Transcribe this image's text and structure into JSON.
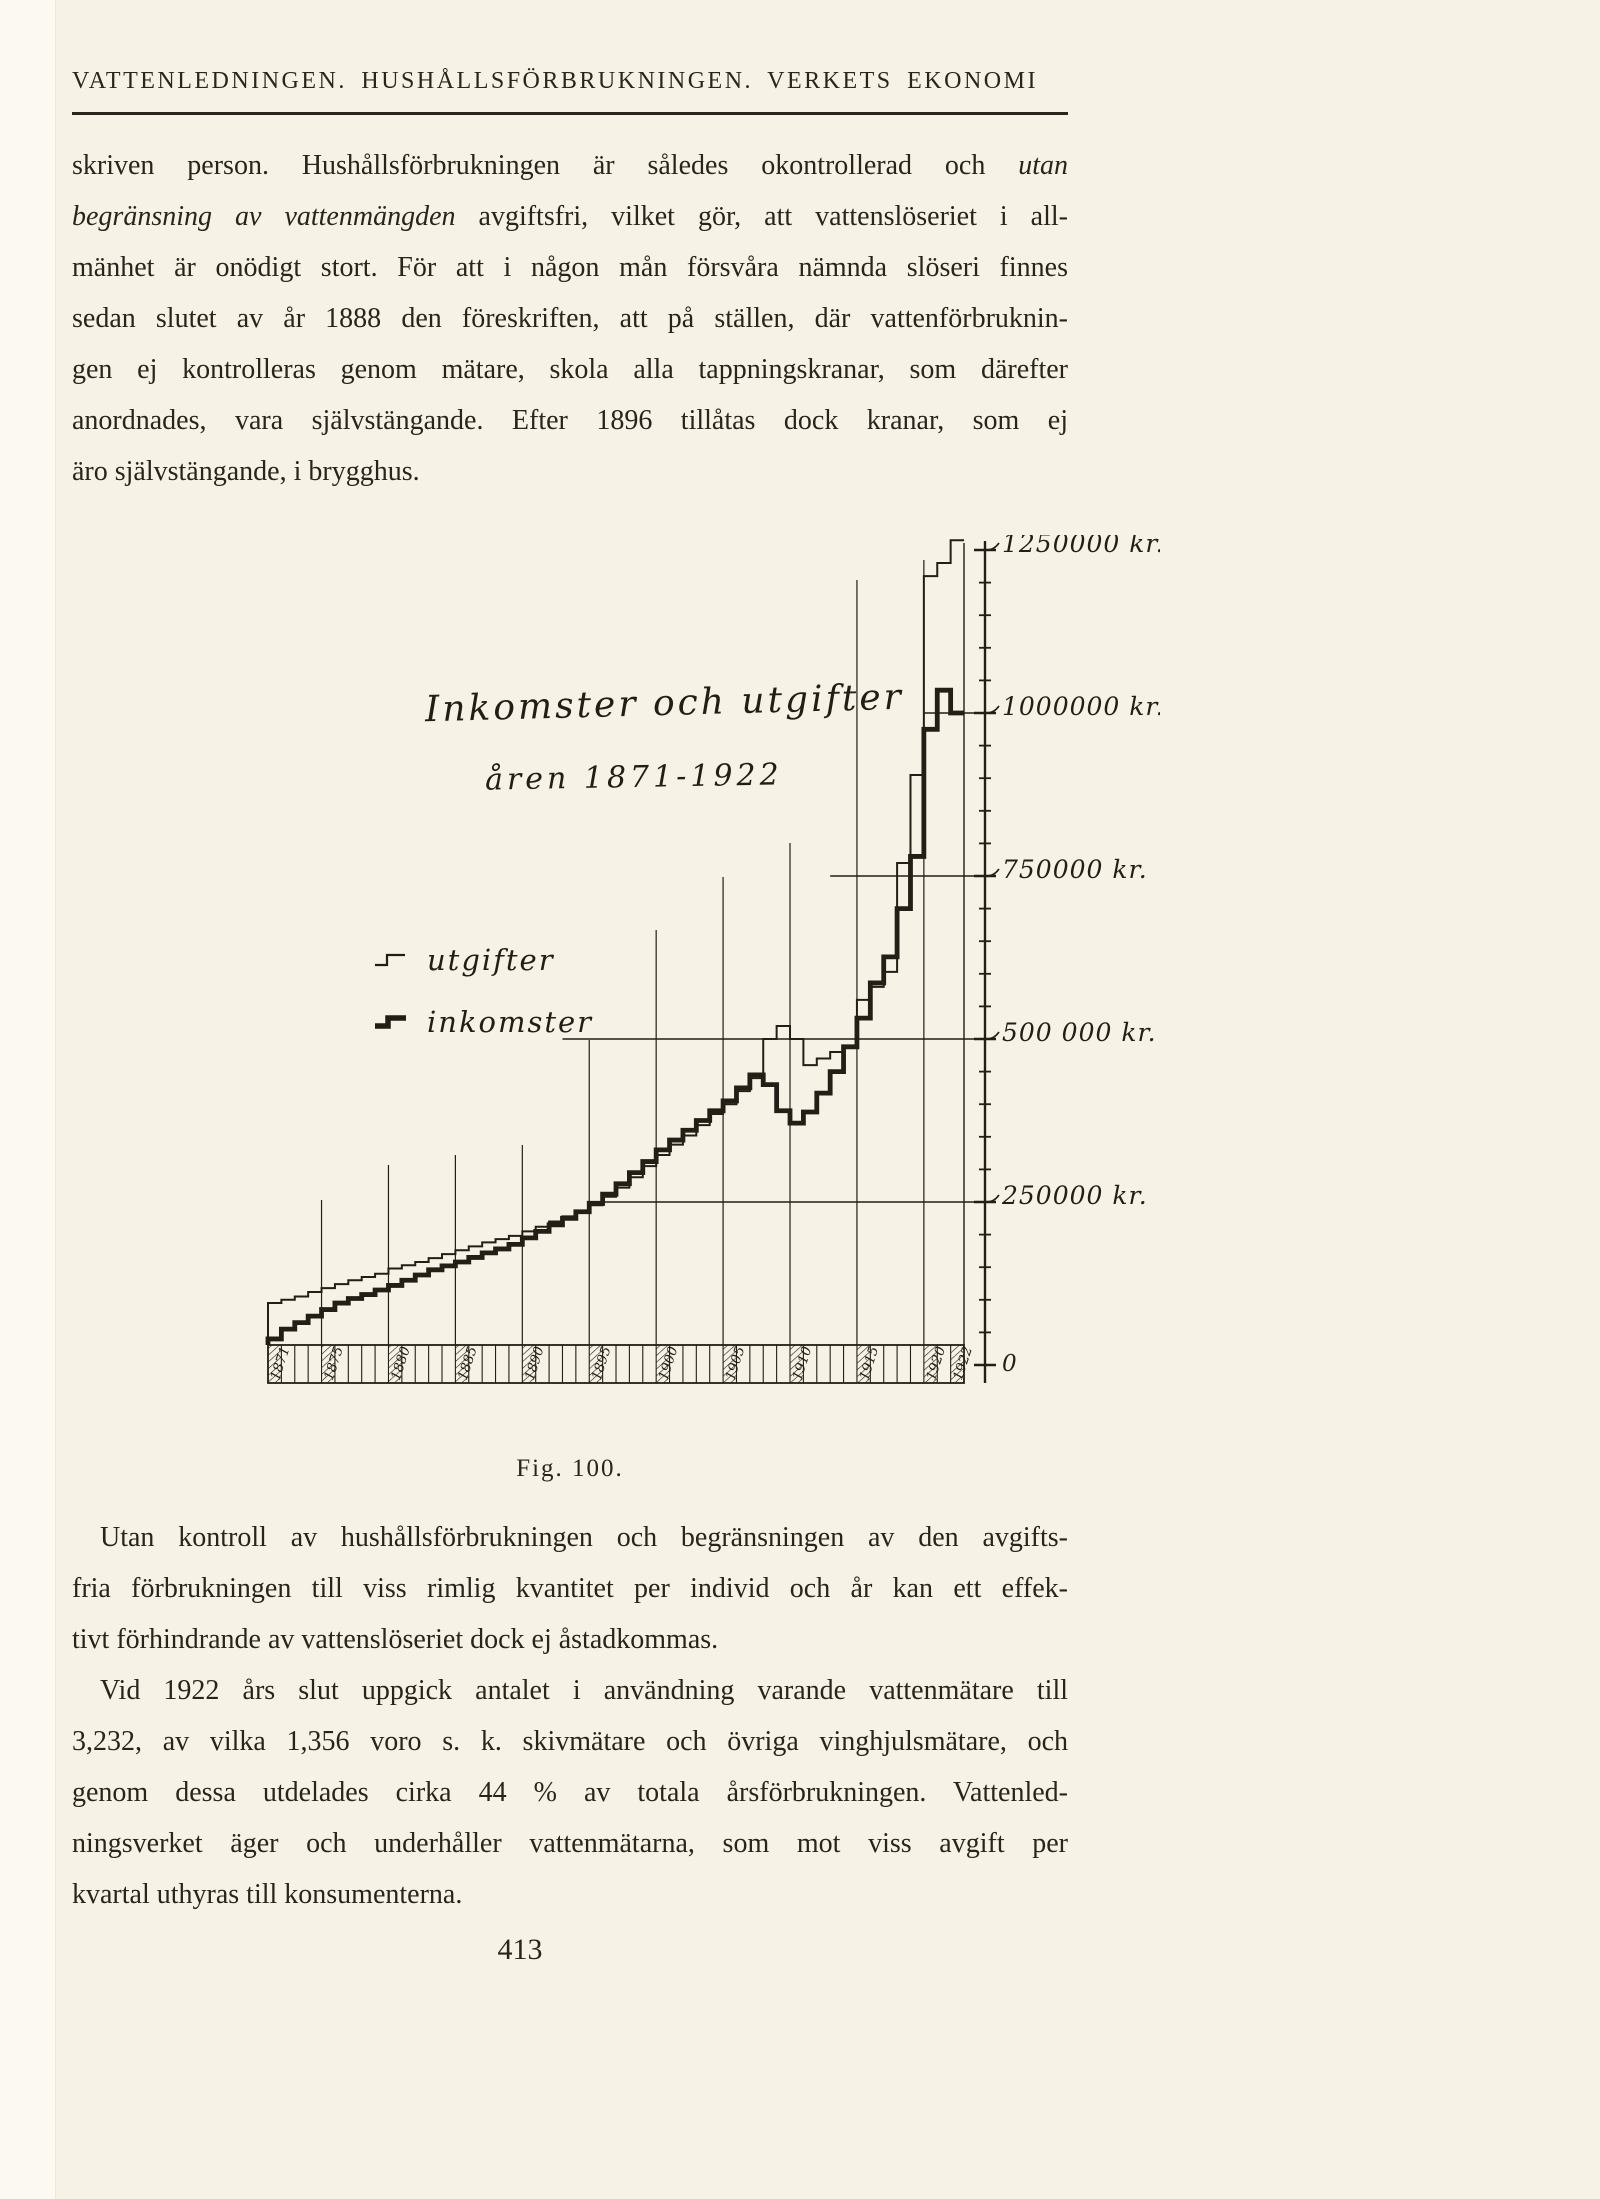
{
  "page": {
    "header": "VATTENLEDNINGEN. HUSHÅLLSFÖRBRUKNINGEN. VERKETS EKONOMI",
    "page_number": "413"
  },
  "paragraphs": [
    {
      "indent": false,
      "lines": [
        [
          {
            "t": "skriven person.  Hushållsförbrukningen är således okontrollerad och "
          },
          {
            "t": "utan",
            "i": true
          }
        ],
        [
          {
            "t": "begränsning av vattenmängden",
            "i": true
          },
          {
            "t": " avgiftsfri, vilket gör, att vattenslöseriet i all-"
          }
        ],
        [
          {
            "t": "mänhet är onödigt stort.  För att i någon mån försvåra nämnda slöseri finnes"
          }
        ],
        [
          {
            "t": "sedan slutet av år 1888 den föreskriften, att på ställen, där vattenförbruknin-"
          }
        ],
        [
          {
            "t": "gen ej kontrolleras genom mätare, skola alla tappningskranar, som därefter"
          }
        ],
        [
          {
            "t": "anordnades, vara självstängande.  Efter 1896 tillåtas dock kranar, som ej"
          }
        ],
        [
          {
            "t": "äro självstängande, i brygghus."
          }
        ]
      ]
    },
    {
      "indent": true,
      "lines": [
        [
          {
            "t": "Utan kontroll av hushållsförbrukningen och begränsningen av den avgifts-"
          }
        ],
        [
          {
            "t": "fria förbrukningen till viss rimlig kvantitet per individ och år kan ett effek-"
          }
        ],
        [
          {
            "t": "tivt förhindrande av vattenslöseriet dock ej åstadkommas."
          }
        ]
      ]
    },
    {
      "indent": true,
      "lines": [
        [
          {
            "t": "Vid 1922 års slut uppgick antalet i användning varande vattenmätare till"
          }
        ],
        [
          {
            "t": "3,232, av vilka 1,356 voro s. k. skivmätare och övriga vinghjulsmätare, och"
          }
        ],
        [
          {
            "t": "genom dessa utdelades cirka 44 % av totala årsförbrukningen.  Vattenled-"
          }
        ],
        [
          {
            "t": "ningsverket äger och underhåller vattenmätarna, som mot viss avgift per"
          }
        ],
        [
          {
            "t": "kvartal uthyras till konsumenterna."
          }
        ]
      ]
    }
  ],
  "chart_data": {
    "type": "line",
    "title": "Inkomster och utgifter",
    "subtitle": "åren 1871-1922",
    "caption": "Fig. 100.",
    "unit": "kr.",
    "ylim": [
      0,
      1300000
    ],
    "legend": [
      {
        "label": "utgifter",
        "style": "thin-step"
      },
      {
        "label": "inkomster",
        "style": "thick-step"
      }
    ],
    "yticks_major": [
      {
        "value": 1250000,
        "label": "1250000 kr."
      },
      {
        "value": 1000000,
        "label": "1000000 kr."
      },
      {
        "value": 750000,
        "label": "750000 kr."
      },
      {
        "value": 500000,
        "label": "500 000 kr."
      },
      {
        "value": 250000,
        "label": "250000 kr."
      },
      {
        "value": 0,
        "label": "0"
      }
    ],
    "ytick_minor_step": 50000,
    "x_labeled_years": [
      1871,
      1875,
      1880,
      1885,
      1890,
      1895,
      1900,
      1905,
      1910,
      1915,
      1920,
      1922
    ],
    "years": [
      1871,
      1872,
      1873,
      1874,
      1875,
      1876,
      1877,
      1878,
      1879,
      1880,
      1881,
      1882,
      1883,
      1884,
      1885,
      1886,
      1887,
      1888,
      1889,
      1890,
      1891,
      1892,
      1893,
      1894,
      1895,
      1896,
      1897,
      1898,
      1899,
      1900,
      1901,
      1902,
      1903,
      1904,
      1905,
      1906,
      1907,
      1908,
      1909,
      1910,
      1911,
      1912,
      1913,
      1914,
      1915,
      1916,
      1917,
      1918,
      1919,
      1920,
      1921,
      1922
    ],
    "series": [
      {
        "name": "utgifter",
        "line": "thin",
        "values": [
          95000,
          100000,
          105000,
          112000,
          118000,
          124000,
          130000,
          135000,
          140000,
          148000,
          153000,
          158000,
          164000,
          170000,
          176000,
          182000,
          188000,
          193000,
          198000,
          205000,
          212000,
          220000,
          228000,
          236000,
          245000,
          258000,
          272000,
          288000,
          305000,
          322000,
          338000,
          352000,
          368000,
          385000,
          400000,
          420000,
          440000,
          500000,
          520000,
          500000,
          460000,
          470000,
          480000,
          490000,
          560000,
          580000,
          603000,
          770000,
          905000,
          1210000,
          1230000,
          1265000
        ]
      },
      {
        "name": "inkomster",
        "line": "thick",
        "values": [
          40000,
          55000,
          65000,
          75000,
          85000,
          95000,
          102000,
          108000,
          115000,
          122000,
          130000,
          138000,
          146000,
          152000,
          158000,
          165000,
          172000,
          178000,
          185000,
          195000,
          205000,
          215000,
          225000,
          235000,
          248000,
          262000,
          278000,
          295000,
          312000,
          330000,
          345000,
          360000,
          375000,
          390000,
          405000,
          425000,
          445000,
          430000,
          390000,
          371000,
          388000,
          417000,
          450000,
          488000,
          532000,
          586000,
          626000,
          700000,
          780000,
          975000,
          1035000,
          1000000
        ]
      }
    ],
    "grid": {
      "h_lines": [
        {
          "value": 250000,
          "start_year": 1896
        },
        {
          "value": 500000,
          "start_year": 1893
        },
        {
          "value": 750000,
          "start_year": 1913
        },
        {
          "value": 1000000,
          "start_year": 1920
        }
      ],
      "v_line_years": [
        1875,
        1880,
        1885,
        1890,
        1895,
        1900,
        1905,
        1910,
        1915,
        1920
      ]
    }
  }
}
